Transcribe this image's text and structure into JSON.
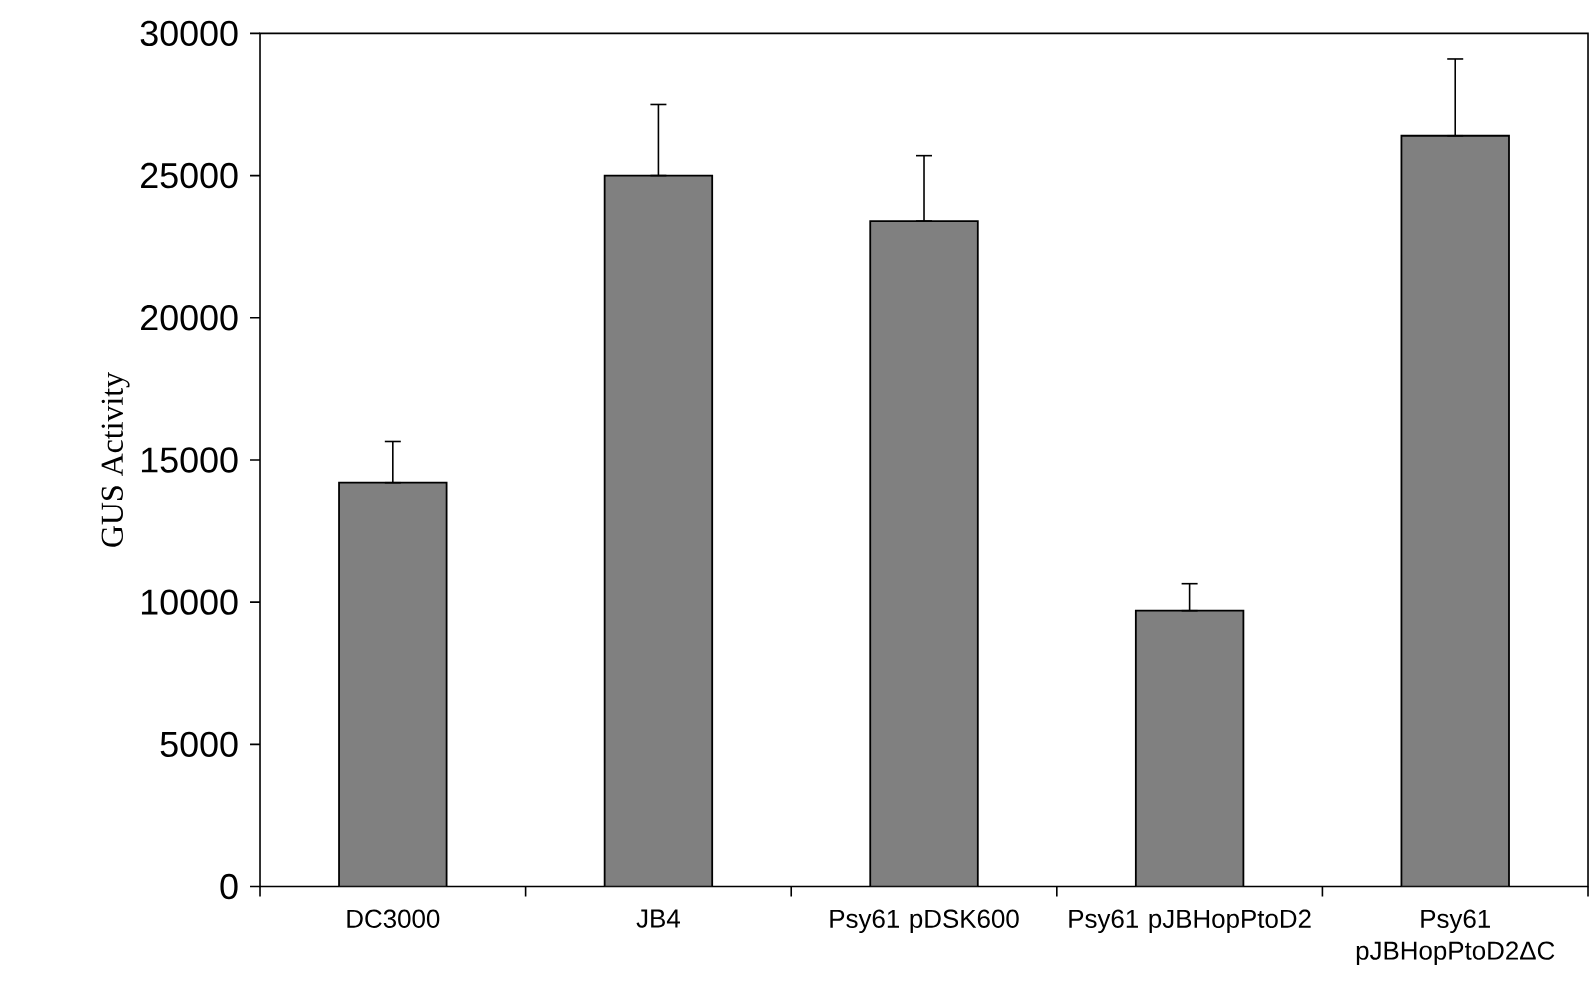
{
  "chart_data": {
    "type": "bar",
    "ylabel": "GUS Activity",
    "categories": [
      "DC3000",
      "JB4",
      "Psy61 pDSK600",
      "Psy61 pJBHopPtoD2",
      "Psy61 pJBHopPtoD2ΔC"
    ],
    "values": [
      14200,
      25000,
      23400,
      9700,
      26400
    ],
    "errors": [
      [
        14200,
        15650
      ],
      [
        25000,
        27500
      ],
      [
        23400,
        25700
      ],
      [
        9700,
        10650
      ],
      [
        26400,
        29100
      ]
    ],
    "color": "#808080",
    "ylim": [
      0,
      30000
    ],
    "yticks": [
      0,
      5000,
      10000,
      15000,
      20000,
      25000,
      30000
    ]
  }
}
